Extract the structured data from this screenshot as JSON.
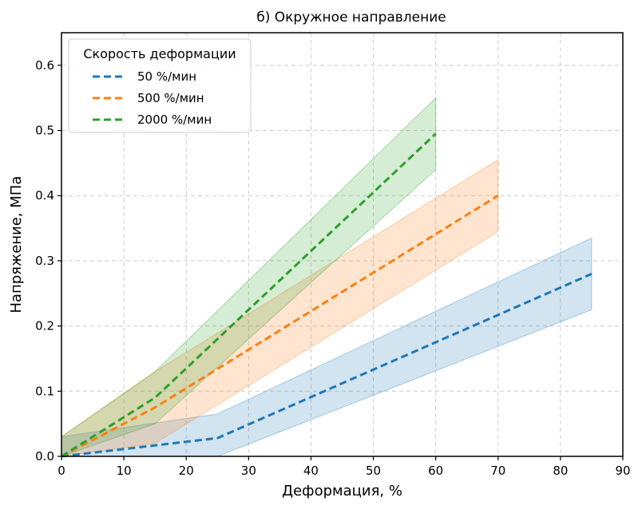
{
  "chart_data": {
    "type": "line",
    "title": "б) Окружное направление",
    "xlabel": "Деформация, %",
    "ylabel": "Напряжение, МПа",
    "xlim": [
      0,
      90
    ],
    "ylim": [
      0,
      0.65
    ],
    "xticks": [
      0,
      10,
      20,
      30,
      40,
      50,
      60,
      70,
      80,
      90
    ],
    "yticks": [
      0.0,
      0.1,
      0.2,
      0.3,
      0.4,
      0.5,
      0.6
    ],
    "xtick_labels": [
      "0",
      "10",
      "20",
      "30",
      "40",
      "50",
      "60",
      "70",
      "80",
      "90"
    ],
    "ytick_labels": [
      "0.0",
      "0.1",
      "0.2",
      "0.3",
      "0.4",
      "0.5",
      "0.6"
    ],
    "grid": true,
    "legend": {
      "title": "Скорость деформации",
      "placement": "top-left"
    },
    "series": [
      {
        "name": "50 %/мин",
        "color": "#1f77b4",
        "x": [
          0,
          25,
          85
        ],
        "y": [
          0.0,
          0.028,
          0.28
        ],
        "band_lower": [
          0.0,
          0.0,
          0.225
        ],
        "band_upper": [
          0.03,
          0.065,
          0.335
        ]
      },
      {
        "name": "500 %/мин",
        "color": "#ff7f0e",
        "x": [
          0,
          15,
          70
        ],
        "y": [
          0.0,
          0.075,
          0.4
        ],
        "band_lower": [
          0.0,
          0.02,
          0.345
        ],
        "band_upper": [
          0.03,
          0.13,
          0.455
        ]
      },
      {
        "name": "2000 %/мин",
        "color": "#2ca02c",
        "x": [
          0,
          15,
          60
        ],
        "y": [
          0.0,
          0.09,
          0.495
        ],
        "band_lower": [
          0.0,
          0.05,
          0.44
        ],
        "band_upper": [
          0.03,
          0.13,
          0.55
        ]
      }
    ]
  }
}
